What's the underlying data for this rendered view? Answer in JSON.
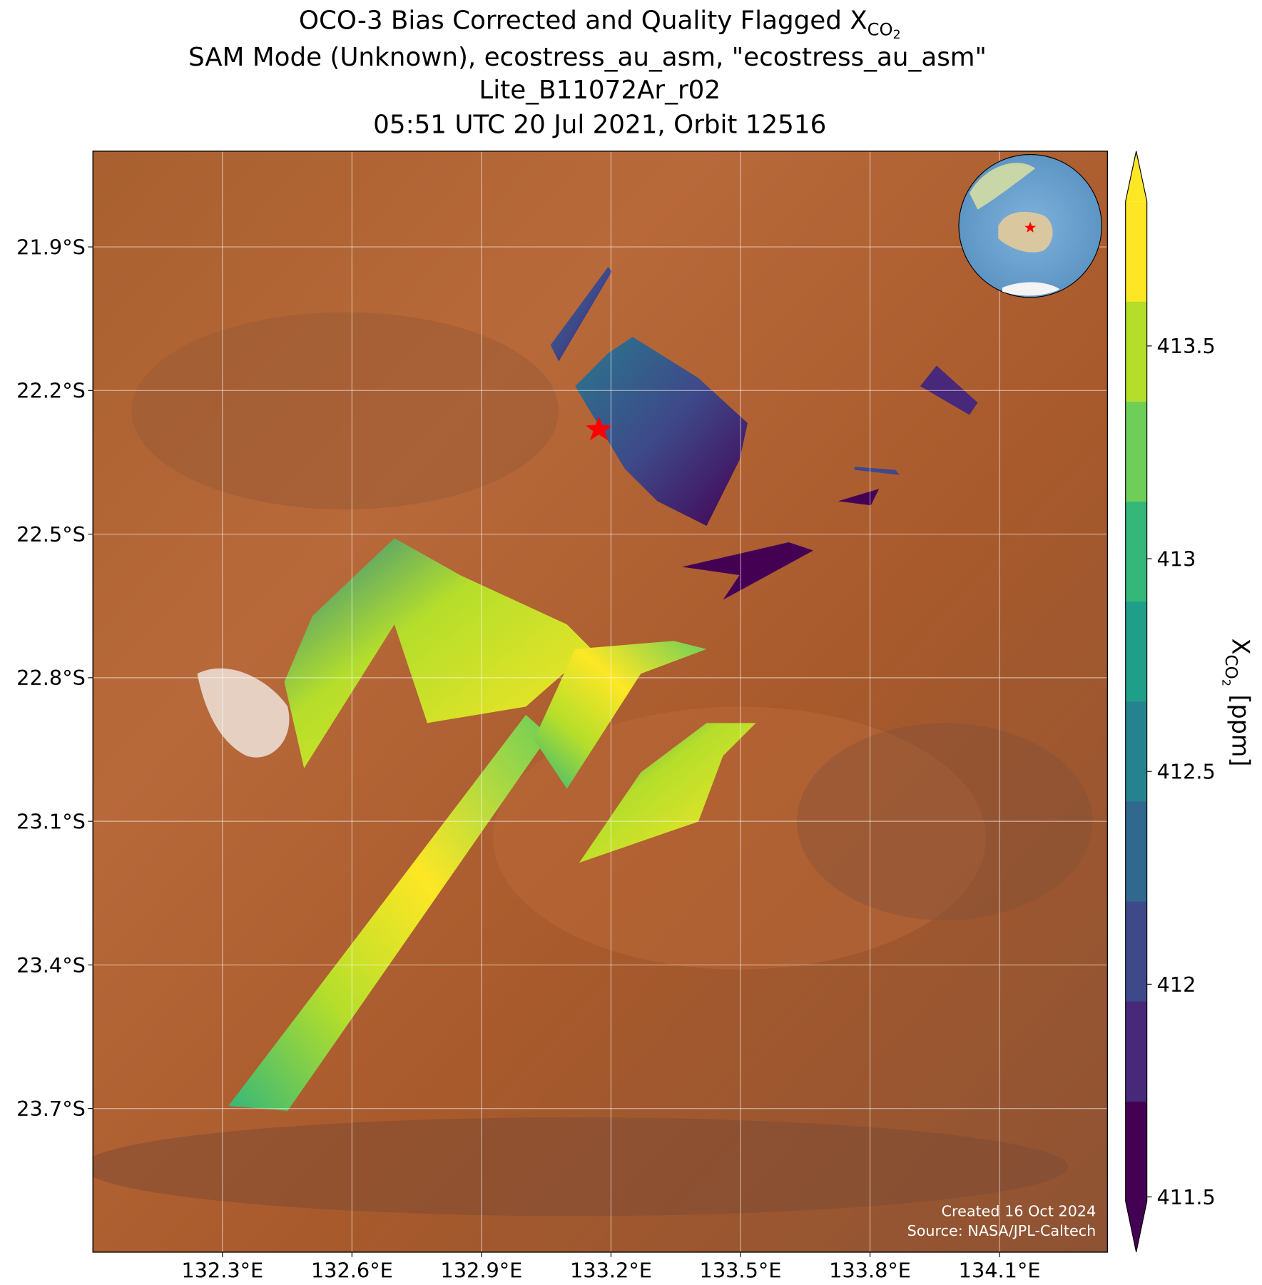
{
  "chart_data": {
    "type": "map",
    "title": "OCO-3 Bias Corrected and Quality Flagged X",
    "title_subscript": "CO",
    "title_subscript2": "2",
    "subtitle": "SAM Mode (Unknown), ecostress_au_asm, \"ecostress_au_asm\"",
    "file": "Lite_B11072Ar_r02",
    "time": "05:51 UTC 20 Jul 2021, Orbit 12516",
    "xlim": [
      132.0,
      134.35
    ],
    "ylim": [
      -24.0,
      -21.7
    ],
    "xticks": [
      {
        "value": 132.3,
        "label": "132.3°E"
      },
      {
        "value": 132.6,
        "label": "132.6°E"
      },
      {
        "value": 132.9,
        "label": "132.9°E"
      },
      {
        "value": 133.2,
        "label": "133.2°E"
      },
      {
        "value": 133.5,
        "label": "133.5°E"
      },
      {
        "value": 133.8,
        "label": "133.8°E"
      },
      {
        "value": 134.1,
        "label": "134.1°E"
      }
    ],
    "yticks": [
      {
        "value": -21.9,
        "label": "21.9°S"
      },
      {
        "value": -22.2,
        "label": "22.2°S"
      },
      {
        "value": -22.5,
        "label": "22.5°S"
      },
      {
        "value": -22.8,
        "label": "22.8°S"
      },
      {
        "value": -23.1,
        "label": "23.1°S"
      },
      {
        "value": -23.4,
        "label": "23.4°S"
      },
      {
        "value": -23.7,
        "label": "23.7°S"
      }
    ],
    "grid": true,
    "colorbar": {
      "label": "X",
      "label_subscript": "CO",
      "label_subscript2": "2",
      "label_unit": "[ppm]",
      "clim": [
        411.49,
        413.84
      ],
      "ticks": [
        {
          "value": 411.5,
          "label": "411.5"
        },
        412.0,
        412.5,
        413.0,
        413.5
      ],
      "colors": [
        "#440154",
        "#482878",
        "#3e4989",
        "#31688e",
        "#26828e",
        "#1f9e89",
        "#35b779",
        "#6ece58",
        "#b5de2b",
        "#fde725"
      ]
    },
    "credit": "Created 16 Oct 2024",
    "source": "Source: NASA/JPL-Caltech"
  }
}
